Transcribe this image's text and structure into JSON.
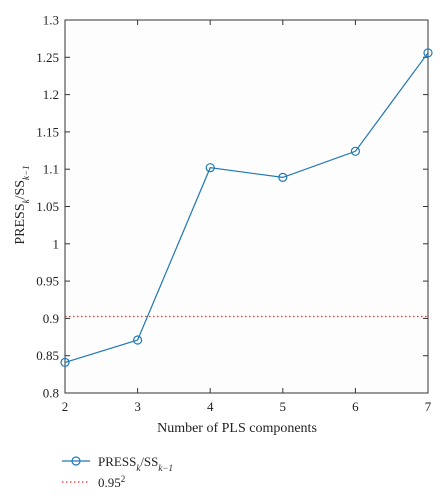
{
  "chart_data": {
    "type": "line",
    "title": "",
    "xlabel": "Number of PLS components",
    "ylabel": {
      "base": "PRESS",
      "sub1": "k",
      "mid": "/SS",
      "sub2": "k−1"
    },
    "x": [
      2,
      3,
      4,
      5,
      6,
      7
    ],
    "xlim": [
      2,
      7
    ],
    "ylim": [
      0.8,
      1.3
    ],
    "xticks": [
      "2",
      "3",
      "4",
      "5",
      "6",
      "7"
    ],
    "yticks": [
      "0.8",
      "0.85",
      "0.9",
      "0.95",
      "1",
      "1.05",
      "1.1",
      "1.15",
      "1.2",
      "1.25",
      "1.3"
    ],
    "grid": false,
    "legend_position": "bottom-left, below plot",
    "series": [
      {
        "name": {
          "base": "PRESS",
          "sub1": "k",
          "mid": "/SS",
          "sub2": "k−1"
        },
        "values": [
          0.841,
          0.871,
          1.102,
          1.089,
          1.124,
          1.256
        ],
        "color": "#1f77b4",
        "marker": "circle",
        "style": "solid"
      }
    ],
    "reference_line": {
      "name": {
        "base": "0.95",
        "sup": "2"
      },
      "value": 0.9025,
      "color": "#e8302a",
      "style": "dotted"
    }
  }
}
